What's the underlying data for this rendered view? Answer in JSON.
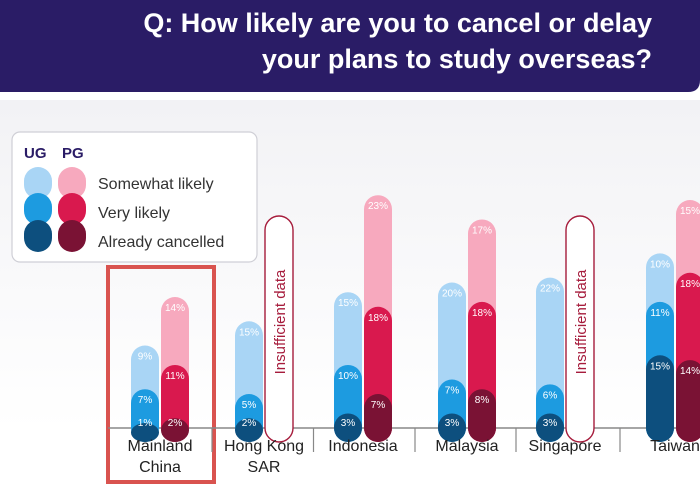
{
  "header": {
    "question_line1": "Q: How likely are you to cancel or delay",
    "question_line2": "your plans to study overseas?"
  },
  "legend": {
    "ug_label": "UG",
    "pg_label": "PG",
    "items": [
      "Somewhat likely",
      "Very likely",
      "Already cancelled"
    ]
  },
  "colors": {
    "header_bg": "#2a1c66",
    "ug_somewhat": "#a9d5f5",
    "ug_very": "#1d9be0",
    "ug_cancelled": "#0d4f7e",
    "pg_somewhat": "#f7a9be",
    "pg_very": "#d9194e",
    "pg_cancelled": "#7a1234",
    "highlight": "#d9534f",
    "insufficient_border": "#a61c3c"
  },
  "chart_data": {
    "type": "bar",
    "stacked": "cumulative",
    "categories": [
      "Mainland China",
      "Hong Kong SAR",
      "Indonesia",
      "Malaysia",
      "Singapore",
      "Taiwan"
    ],
    "highlighted_category": "Mainland China",
    "series": [
      {
        "group": "UG",
        "name": "Somewhat likely",
        "values": [
          9,
          15,
          15,
          20,
          22,
          10
        ]
      },
      {
        "group": "UG",
        "name": "Very likely",
        "values": [
          7,
          5,
          10,
          7,
          6,
          11
        ]
      },
      {
        "group": "UG",
        "name": "Already cancelled",
        "values": [
          1,
          2,
          3,
          3,
          3,
          15
        ]
      },
      {
        "group": "PG",
        "name": "Somewhat likely",
        "values": [
          14,
          null,
          23,
          17,
          null,
          15
        ]
      },
      {
        "group": "PG",
        "name": "Very likely",
        "values": [
          11,
          null,
          18,
          18,
          null,
          18
        ]
      },
      {
        "group": "PG",
        "name": "Already cancelled",
        "values": [
          2,
          null,
          7,
          8,
          null,
          14
        ]
      }
    ],
    "insufficient_data_label": "Insufficient data",
    "insufficient_data_categories": [
      "Hong Kong SAR",
      "Singapore"
    ]
  }
}
